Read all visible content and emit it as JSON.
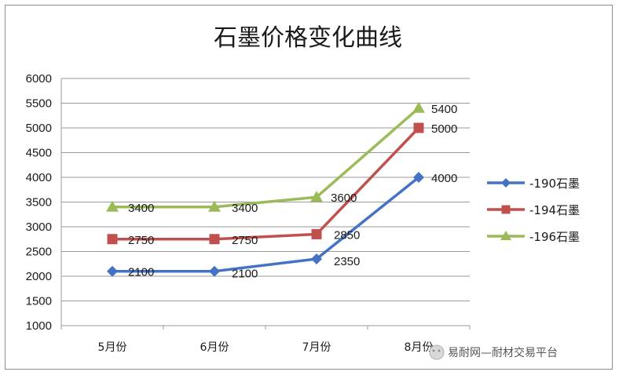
{
  "chart_data": {
    "type": "line",
    "title": "石墨价格变化曲线",
    "categories": [
      "5月份",
      "6月份",
      "7月份",
      "8月份"
    ],
    "ylim": [
      1000,
      6000
    ],
    "yticks": [
      1000,
      1500,
      2000,
      2500,
      3000,
      3500,
      4000,
      4500,
      5000,
      5500,
      6000
    ],
    "grid": true,
    "legend_position": "right",
    "series": [
      {
        "name": "-190石墨",
        "values": [
          2100,
          2100,
          2350,
          4000
        ],
        "color": "#4472C4",
        "marker": "diamond"
      },
      {
        "name": "-194石墨",
        "values": [
          2750,
          2750,
          2850,
          5000
        ],
        "color": "#C0504D",
        "marker": "square"
      },
      {
        "name": "-196石墨",
        "values": [
          3400,
          3400,
          3600,
          5400
        ],
        "color": "#9BBB59",
        "marker": "triangle"
      }
    ]
  },
  "watermark": {
    "text": "易耐网—耐材交易平台",
    "icon": "wechat-icon"
  }
}
